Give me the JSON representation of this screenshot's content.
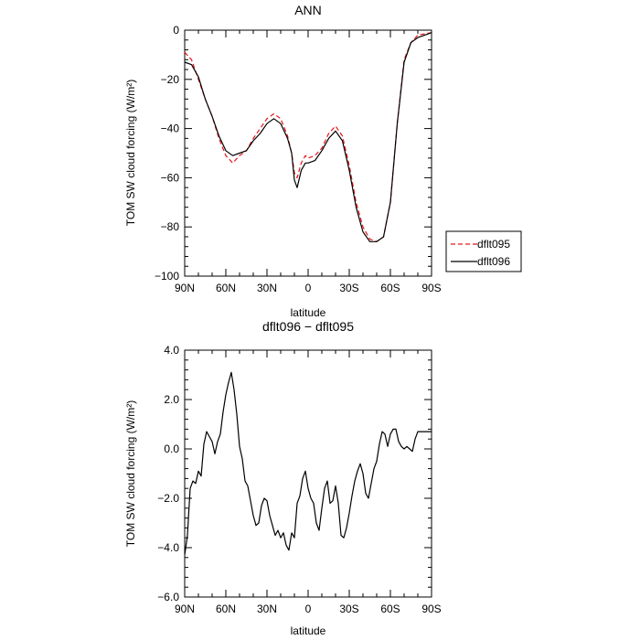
{
  "chart_data": [
    {
      "type": "line",
      "title": "ANN",
      "xlabel": "latitude",
      "ylabel": "TOM SW cloud forcing (W/m²)",
      "xlim": [
        90,
        -90
      ],
      "ylim": [
        -100,
        0
      ],
      "xticks": [
        90,
        60,
        30,
        0,
        -30,
        -60,
        -90
      ],
      "xtick_labels": [
        "90N",
        "60N",
        "30N",
        "0",
        "30S",
        "60S",
        "90S"
      ],
      "yticks": [
        0,
        -20,
        -40,
        -60,
        -80,
        -100
      ],
      "ytick_labels": [
        "0",
        "−20",
        "−40",
        "−60",
        "−80",
        "−100"
      ],
      "legend_position": "right-bottom, outside plot",
      "series": [
        {
          "name": "dflt095",
          "color": "#e8141a",
          "dash": "dashed",
          "x": [
            90,
            85,
            80,
            75,
            70,
            65,
            60,
            55,
            50,
            45,
            40,
            35,
            30,
            25,
            20,
            15,
            12,
            10,
            8,
            5,
            2,
            0,
            -5,
            -10,
            -15,
            -20,
            -25,
            -30,
            -35,
            -40,
            -45,
            -50,
            -55,
            -60,
            -65,
            -70,
            -75,
            -80,
            -85,
            -90
          ],
          "y": [
            -9,
            -12,
            -20,
            -28,
            -35,
            -44,
            -51,
            -54,
            -51,
            -49,
            -44,
            -40,
            -36,
            -34,
            -36,
            -43,
            -50,
            -58,
            -60,
            -54,
            -51,
            -52,
            -51,
            -48,
            -42,
            -39,
            -43,
            -55,
            -70,
            -80,
            -85,
            -86,
            -84,
            -70,
            -38,
            -12,
            -5,
            -2,
            -1.5,
            -1
          ]
        },
        {
          "name": "dflt096",
          "color": "#000000",
          "dash": "solid",
          "x": [
            90,
            85,
            80,
            75,
            70,
            65,
            60,
            55,
            50,
            45,
            40,
            35,
            30,
            25,
            20,
            15,
            12,
            10,
            8,
            5,
            2,
            0,
            -5,
            -10,
            -15,
            -20,
            -25,
            -30,
            -35,
            -40,
            -45,
            -50,
            -55,
            -60,
            -65,
            -70,
            -75,
            -80,
            -85,
            -90
          ],
          "y": [
            -13,
            -14,
            -19,
            -28,
            -35,
            -43,
            -49,
            -51,
            -50,
            -49,
            -45,
            -42,
            -38,
            -36,
            -38,
            -44,
            -50,
            -61,
            -64,
            -57,
            -54,
            -54,
            -53,
            -49,
            -44,
            -41,
            -45,
            -57,
            -72,
            -82,
            -86,
            -86,
            -84,
            -70,
            -38,
            -13,
            -5,
            -3,
            -2,
            -1
          ]
        }
      ]
    },
    {
      "type": "line",
      "title": "dflt096 − dflt095",
      "xlabel": "latitude",
      "ylabel": "TOM SW cloud forcing (W/m²)",
      "xlim": [
        90,
        -90
      ],
      "ylim": [
        -6,
        4
      ],
      "xticks": [
        90,
        60,
        30,
        0,
        -30,
        -60,
        -90
      ],
      "xtick_labels": [
        "90N",
        "60N",
        "30N",
        "0",
        "30S",
        "60S",
        "90S"
      ],
      "yticks": [
        4,
        2,
        0,
        -2,
        -4,
        -6
      ],
      "ytick_labels": [
        "4.0",
        "2.0",
        "0.0",
        "−2.0",
        "−4.0",
        "−6.0"
      ],
      "series": [
        {
          "name": "",
          "color": "#000000",
          "dash": "solid",
          "x": [
            90,
            88,
            86,
            84,
            82,
            80,
            78,
            76,
            74,
            72,
            70,
            68,
            66,
            64,
            62,
            60,
            58,
            56,
            54,
            52,
            50,
            48,
            46,
            44,
            42,
            40,
            38,
            36,
            34,
            32,
            30,
            28,
            26,
            24,
            22,
            20,
            18,
            16,
            14,
            12,
            10,
            8,
            6,
            4,
            2,
            0,
            -2,
            -4,
            -6,
            -8,
            -10,
            -12,
            -14,
            -16,
            -18,
            -20,
            -22,
            -24,
            -26,
            -28,
            -30,
            -32,
            -34,
            -36,
            -38,
            -40,
            -42,
            -44,
            -46,
            -48,
            -50,
            -52,
            -54,
            -56,
            -58,
            -60,
            -62,
            -64,
            -66,
            -68,
            -70,
            -72,
            -74,
            -76,
            -78,
            -80,
            -82,
            -84,
            -86,
            -88,
            -90
          ],
          "y": [
            -4.3,
            -3.5,
            -1.6,
            -1.3,
            -1.4,
            -0.9,
            -1.1,
            0.2,
            0.7,
            0.5,
            0.3,
            -0.2,
            0.3,
            0.6,
            1.5,
            2.2,
            2.7,
            3.1,
            2.4,
            1.4,
            0.1,
            -0.4,
            -1.3,
            -1.5,
            -2.1,
            -2.7,
            -3.1,
            -3.0,
            -2.3,
            -2.0,
            -2.1,
            -2.7,
            -3.1,
            -3.5,
            -3.3,
            -3.6,
            -3.4,
            -3.9,
            -4.1,
            -3.4,
            -3.6,
            -2.2,
            -1.9,
            -1.2,
            -0.9,
            -1.6,
            -2.0,
            -2.2,
            -3.0,
            -3.3,
            -2.4,
            -1.6,
            -1.3,
            -2.2,
            -2.1,
            -1.5,
            -2.2,
            -3.5,
            -3.6,
            -3.2,
            -2.6,
            -1.9,
            -1.3,
            -0.9,
            -0.6,
            -1.0,
            -1.8,
            -2.0,
            -1.4,
            -0.8,
            -0.5,
            0.2,
            0.7,
            0.6,
            0.1,
            0.6,
            0.8,
            0.8,
            0.3,
            0.1,
            0.0,
            0.1,
            0.0,
            -0.1,
            0.4,
            0.7,
            0.7,
            0.7,
            0.7,
            0.7,
            0.7
          ]
        }
      ]
    }
  ]
}
